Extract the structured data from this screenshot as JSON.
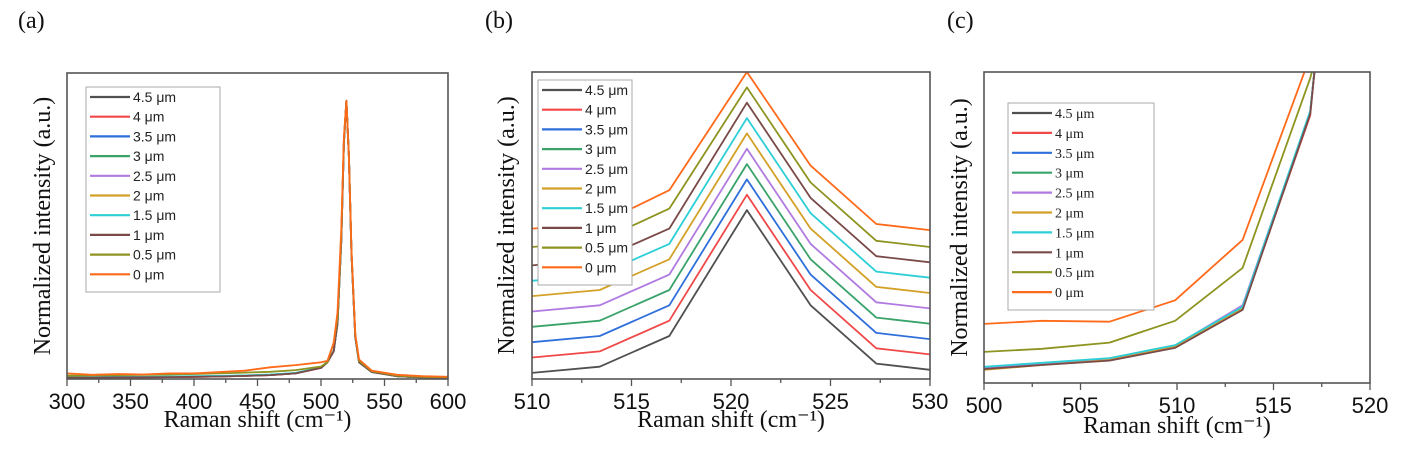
{
  "figure": {
    "series_names": [
      "4.5 μm",
      "4 μm",
      "3.5 μm",
      "3 μm",
      "2.5 μm",
      "2 μm",
      "1.5 μm",
      "1 μm",
      "0.5 μm",
      "0 μm"
    ],
    "series_colors": [
      "#505050",
      "#f04848",
      "#2f6fdc",
      "#3aa36a",
      "#b07ae0",
      "#d3a128",
      "#2ccfd6",
      "#7a4a48",
      "#8d9420",
      "#ff6a1a"
    ]
  },
  "chart_data": [
    {
      "panel_label": "(a)",
      "type": "line",
      "title": "",
      "xlabel": "Raman shift (cm⁻¹)",
      "ylabel": "Normalized intensity (a.u.)",
      "xlim": [
        300,
        600
      ],
      "ylim": [
        0,
        1.1
      ],
      "xticks": [
        300,
        350,
        400,
        450,
        500,
        550,
        600
      ],
      "xtick_labels": [
        "300",
        "350",
        "400",
        "450",
        "500",
        "550",
        "600"
      ],
      "legend": "top-left",
      "grid": false,
      "x": [
        300,
        320,
        340,
        360,
        380,
        400,
        420,
        440,
        460,
        480,
        500,
        505,
        510,
        513,
        516,
        518,
        520,
        522,
        524,
        527,
        530,
        540,
        560,
        580,
        600
      ],
      "series": [
        {
          "name": "4.5 μm",
          "values": [
            0.005,
            0.005,
            0.006,
            0.006,
            0.007,
            0.008,
            0.009,
            0.011,
            0.014,
            0.02,
            0.04,
            0.06,
            0.1,
            0.2,
            0.5,
            0.85,
            1.0,
            0.8,
            0.45,
            0.15,
            0.06,
            0.025,
            0.01,
            0.006,
            0.004
          ]
        },
        {
          "name": "4 μm",
          "values": [
            0.005,
            0.005,
            0.006,
            0.006,
            0.007,
            0.008,
            0.009,
            0.011,
            0.014,
            0.02,
            0.04,
            0.06,
            0.1,
            0.2,
            0.5,
            0.85,
            1.0,
            0.8,
            0.45,
            0.15,
            0.06,
            0.025,
            0.01,
            0.006,
            0.004
          ]
        },
        {
          "name": "3.5 μm",
          "values": [
            0.006,
            0.006,
            0.007,
            0.007,
            0.008,
            0.009,
            0.01,
            0.012,
            0.015,
            0.021,
            0.041,
            0.062,
            0.1,
            0.2,
            0.5,
            0.85,
            1.0,
            0.8,
            0.45,
            0.15,
            0.06,
            0.025,
            0.01,
            0.006,
            0.004
          ]
        },
        {
          "name": "3 μm",
          "values": [
            0.006,
            0.006,
            0.007,
            0.007,
            0.008,
            0.009,
            0.01,
            0.012,
            0.015,
            0.021,
            0.041,
            0.062,
            0.1,
            0.2,
            0.5,
            0.85,
            1.0,
            0.8,
            0.45,
            0.15,
            0.06,
            0.025,
            0.01,
            0.006,
            0.004
          ]
        },
        {
          "name": "2.5 μm",
          "values": [
            0.006,
            0.006,
            0.007,
            0.007,
            0.008,
            0.009,
            0.01,
            0.012,
            0.015,
            0.021,
            0.041,
            0.062,
            0.1,
            0.2,
            0.5,
            0.85,
            1.0,
            0.8,
            0.45,
            0.15,
            0.06,
            0.025,
            0.01,
            0.006,
            0.004
          ]
        },
        {
          "name": "2 μm",
          "values": [
            0.006,
            0.006,
            0.007,
            0.007,
            0.008,
            0.009,
            0.01,
            0.012,
            0.015,
            0.021,
            0.041,
            0.062,
            0.1,
            0.2,
            0.5,
            0.85,
            1.0,
            0.8,
            0.45,
            0.15,
            0.06,
            0.025,
            0.01,
            0.006,
            0.004
          ]
        },
        {
          "name": "1.5 μm",
          "values": [
            0.007,
            0.007,
            0.008,
            0.008,
            0.009,
            0.01,
            0.011,
            0.013,
            0.016,
            0.022,
            0.042,
            0.063,
            0.1,
            0.2,
            0.5,
            0.85,
            1.0,
            0.8,
            0.45,
            0.15,
            0.06,
            0.025,
            0.01,
            0.006,
            0.004
          ]
        },
        {
          "name": "1 μm",
          "values": [
            0.005,
            0.005,
            0.006,
            0.006,
            0.007,
            0.008,
            0.009,
            0.011,
            0.014,
            0.02,
            0.04,
            0.06,
            0.1,
            0.2,
            0.5,
            0.85,
            1.0,
            0.8,
            0.45,
            0.15,
            0.06,
            0.025,
            0.01,
            0.006,
            0.004
          ]
        },
        {
          "name": "0.5 μm",
          "values": [
            0.012,
            0.013,
            0.014,
            0.015,
            0.016,
            0.018,
            0.02,
            0.023,
            0.026,
            0.032,
            0.045,
            0.06,
            0.13,
            0.22,
            0.52,
            0.86,
            1.0,
            0.8,
            0.46,
            0.16,
            0.065,
            0.028,
            0.012,
            0.008,
            0.006
          ]
        },
        {
          "name": "0 μm",
          "values": [
            0.02,
            0.015,
            0.018,
            0.016,
            0.02,
            0.02,
            0.025,
            0.03,
            0.042,
            0.05,
            0.06,
            0.065,
            0.13,
            0.24,
            0.54,
            0.87,
            1.0,
            0.8,
            0.46,
            0.16,
            0.07,
            0.03,
            0.015,
            0.01,
            0.008
          ]
        }
      ]
    },
    {
      "panel_label": "(b)",
      "type": "line",
      "title": "",
      "xlabel": "Raman shift (cm⁻¹)",
      "ylabel": "Normalized intensity (a.u.)",
      "xlim": [
        510,
        530
      ],
      "ylim": [
        0,
        1.0
      ],
      "xticks": [
        510,
        515,
        520,
        525,
        530
      ],
      "xtick_labels": [
        "510",
        "515",
        "520",
        "525",
        "530"
      ],
      "legend": "top-left",
      "grid": false,
      "note": "curves vertically offset (stacked) for clarity",
      "x": [
        510,
        513.4,
        516.9,
        520.8,
        524.0,
        527.3,
        530
      ],
      "series": [
        {
          "name": "4.5 μm",
          "values": [
            0.02,
            0.04,
            0.14,
            0.55,
            0.24,
            0.05,
            0.03
          ]
        },
        {
          "name": "4 μm",
          "values": [
            0.07,
            0.09,
            0.19,
            0.6,
            0.29,
            0.1,
            0.08
          ]
        },
        {
          "name": "3.5 μm",
          "values": [
            0.12,
            0.14,
            0.24,
            0.65,
            0.34,
            0.15,
            0.13
          ]
        },
        {
          "name": "3 μm",
          "values": [
            0.17,
            0.19,
            0.29,
            0.7,
            0.39,
            0.2,
            0.18
          ]
        },
        {
          "name": "2.5 μm",
          "values": [
            0.22,
            0.24,
            0.34,
            0.75,
            0.44,
            0.25,
            0.23
          ]
        },
        {
          "name": "2 μm",
          "values": [
            0.27,
            0.29,
            0.39,
            0.8,
            0.49,
            0.3,
            0.28
          ]
        },
        {
          "name": "1.5 μm",
          "values": [
            0.32,
            0.34,
            0.44,
            0.85,
            0.54,
            0.35,
            0.33
          ]
        },
        {
          "name": "1 μm",
          "values": [
            0.37,
            0.39,
            0.49,
            0.9,
            0.59,
            0.4,
            0.38
          ]
        },
        {
          "name": "0.5 μm",
          "values": [
            0.43,
            0.45,
            0.555,
            0.95,
            0.64,
            0.45,
            0.43
          ]
        },
        {
          "name": "0 μm",
          "values": [
            0.49,
            0.505,
            0.615,
            1.0,
            0.695,
            0.505,
            0.485
          ]
        }
      ]
    },
    {
      "panel_label": "(c)",
      "type": "line",
      "title": "",
      "xlabel": "Raman shift (cm⁻¹)",
      "ylabel": "Normalized intensity (a.u.)",
      "xlim": [
        500,
        520
      ],
      "ylim": [
        0,
        1.0
      ],
      "xticks": [
        500,
        505,
        510,
        515,
        520
      ],
      "xtick_labels": [
        "500",
        "505",
        "510",
        "515",
        "520"
      ],
      "legend": "top-left",
      "grid": false,
      "x": [
        500,
        503.0,
        506.5,
        509.9,
        513.4,
        516.9,
        517.2
      ],
      "series": [
        {
          "name": "4.5 μm",
          "values": [
            0.045,
            0.06,
            0.075,
            0.115,
            0.24,
            0.87,
            1.05
          ]
        },
        {
          "name": "4 μm",
          "values": [
            0.045,
            0.06,
            0.075,
            0.115,
            0.24,
            0.86,
            1.05
          ]
        },
        {
          "name": "3.5 μm",
          "values": [
            0.05,
            0.063,
            0.078,
            0.12,
            0.245,
            0.87,
            1.05
          ]
        },
        {
          "name": "3 μm",
          "values": [
            0.05,
            0.064,
            0.079,
            0.12,
            0.245,
            0.87,
            1.05
          ]
        },
        {
          "name": "2.5 μm",
          "values": [
            0.048,
            0.062,
            0.078,
            0.12,
            0.25,
            0.87,
            1.05
          ]
        },
        {
          "name": "2 μm",
          "values": [
            0.042,
            0.058,
            0.074,
            0.116,
            0.24,
            0.87,
            1.05
          ]
        },
        {
          "name": "1.5 μm",
          "values": [
            0.052,
            0.065,
            0.08,
            0.122,
            0.245,
            0.875,
            1.05
          ]
        },
        {
          "name": "1 μm",
          "values": [
            0.045,
            0.058,
            0.072,
            0.113,
            0.235,
            0.865,
            1.05
          ]
        },
        {
          "name": "0.5 μm",
          "values": [
            0.1,
            0.11,
            0.13,
            0.2,
            0.37,
            0.98,
            1.05
          ]
        },
        {
          "name": "0 μm",
          "values": [
            0.19,
            0.2,
            0.197,
            0.266,
            0.46,
            1.05,
            1.05
          ]
        }
      ]
    }
  ]
}
